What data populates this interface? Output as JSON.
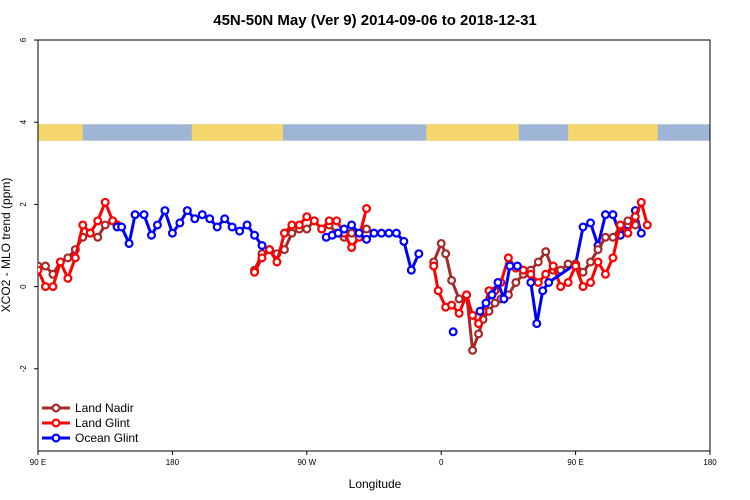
{
  "chart_data": {
    "type": "line",
    "title": "45N-50N May (Ver 9)   2014-09-06 to 2018-12-31",
    "xlabel": "Longitude",
    "ylabel": "XCO2 - MLO trend (ppm)",
    "xlim": [
      90,
      450
    ],
    "ylim": [
      -4,
      6
    ],
    "x_ticks": [
      {
        "value": 90,
        "label": "90 E"
      },
      {
        "value": 180,
        "label": "180"
      },
      {
        "value": 270,
        "label": "90 W"
      },
      {
        "value": 360,
        "label": "0"
      },
      {
        "value": 450,
        "label": "90 E"
      },
      {
        "value": 540,
        "label": "180"
      }
    ],
    "y_ticks": [
      -2,
      0,
      2,
      4,
      6
    ],
    "land_mask_band": {
      "y_range": [
        3.55,
        3.95
      ],
      "land_color": "#f5d76e",
      "ocean_color": "#9fb5d6"
    },
    "legend_position": "bottom-left",
    "series": [
      {
        "name": "Land Nadir",
        "color": "#a52a2a",
        "points": [
          [
            90,
            0.5
          ],
          [
            95,
            0.5
          ],
          [
            100,
            0.3
          ],
          [
            105,
            0.6
          ],
          [
            110,
            0.7
          ],
          [
            115,
            0.9
          ],
          [
            120,
            1.2
          ],
          [
            125,
            1.3
          ],
          [
            130,
            1.2
          ],
          [
            135,
            1.5
          ],
          [
            140,
            1.6
          ],
          [
            143,
            1.5
          ],
          null,
          [
            235,
            0.4
          ],
          [
            240,
            0.8
          ],
          [
            245,
            0.9
          ],
          [
            250,
            0.8
          ],
          [
            255,
            0.9
          ],
          [
            260,
            1.3
          ],
          [
            265,
            1.4
          ],
          [
            270,
            1.4
          ],
          [
            275,
            1.6
          ],
          [
            280,
            1.4
          ],
          [
            285,
            1.5
          ],
          [
            290,
            1.3
          ],
          [
            295,
            1.2
          ],
          [
            300,
            1.3
          ],
          [
            305,
            1.25
          ],
          [
            310,
            1.4
          ],
          null,
          [
            355,
            0.6
          ],
          [
            360,
            1.05
          ],
          [
            363,
            0.8
          ],
          [
            367,
            0.15
          ],
          [
            372,
            -0.3
          ],
          [
            377,
            -0.2
          ],
          [
            381,
            -1.55
          ],
          [
            385,
            -1.15
          ],
          [
            388,
            -0.8
          ],
          [
            392,
            -0.6
          ],
          [
            396,
            -0.4
          ],
          [
            400,
            -0.3
          ],
          [
            405,
            -0.2
          ],
          [
            410,
            0.1
          ],
          [
            415,
            0.3
          ],
          [
            420,
            0.4
          ],
          [
            425,
            0.6
          ],
          [
            430,
            0.85
          ],
          [
            435,
            0.4
          ],
          [
            440,
            0.4
          ],
          [
            445,
            0.55
          ],
          [
            450,
            0.55
          ]
        ]
      },
      {
        "name": "Land Glint",
        "color": "#ff0000",
        "points": [
          [
            90,
            0.4
          ],
          [
            95,
            0.0
          ],
          [
            100,
            0.0
          ],
          [
            105,
            0.6
          ],
          [
            110,
            0.2
          ],
          [
            115,
            0.7
          ],
          [
            120,
            1.5
          ],
          [
            125,
            1.3
          ],
          [
            130,
            1.6
          ],
          [
            135,
            2.05
          ],
          [
            140,
            1.6
          ],
          [
            143,
            1.5
          ],
          null,
          [
            235,
            0.35
          ],
          [
            240,
            0.7
          ],
          [
            245,
            0.9
          ],
          [
            250,
            0.6
          ],
          [
            255,
            1.3
          ],
          [
            260,
            1.5
          ],
          [
            265,
            1.5
          ],
          [
            270,
            1.7
          ],
          [
            275,
            1.6
          ],
          [
            280,
            1.4
          ],
          [
            285,
            1.6
          ],
          [
            290,
            1.6
          ],
          [
            295,
            1.3
          ],
          [
            300,
            0.95
          ],
          [
            305,
            1.2
          ],
          [
            310,
            1.9
          ],
          null,
          [
            355,
            0.5
          ],
          [
            358,
            -0.1
          ],
          [
            363,
            -0.5
          ],
          [
            367,
            -0.45
          ],
          [
            372,
            -0.65
          ],
          [
            377,
            -0.2
          ],
          [
            381,
            -0.7
          ],
          [
            385,
            -0.9
          ],
          [
            388,
            -0.6
          ],
          [
            392,
            -0.1
          ],
          [
            396,
            -0.1
          ],
          [
            400,
            0.1
          ],
          [
            405,
            0.7
          ],
          [
            410,
            0.45
          ],
          [
            415,
            0.4
          ],
          [
            420,
            0.3
          ],
          [
            425,
            0.1
          ],
          [
            430,
            0.3
          ],
          [
            435,
            0.5
          ],
          [
            440,
            0.0
          ],
          [
            445,
            0.1
          ],
          [
            450,
            0.5
          ]
        ]
      },
      {
        "name": "Ocean Glint",
        "color": "#0000ff",
        "points": [
          [
            143,
            1.45
          ],
          [
            146,
            1.45
          ],
          [
            151,
            1.05
          ],
          [
            155,
            1.75
          ],
          [
            161,
            1.75
          ],
          [
            166,
            1.25
          ],
          [
            170,
            1.5
          ],
          [
            175,
            1.85
          ],
          [
            180,
            1.3
          ],
          [
            185,
            1.55
          ],
          [
            190,
            1.85
          ],
          [
            195,
            1.65
          ],
          [
            200,
            1.75
          ],
          [
            205,
            1.65
          ],
          [
            210,
            1.45
          ],
          [
            215,
            1.65
          ],
          [
            220,
            1.45
          ],
          [
            225,
            1.35
          ],
          [
            230,
            1.5
          ],
          [
            235,
            1.25
          ],
          [
            240,
            1.0
          ],
          null,
          [
            283,
            1.2
          ],
          [
            287,
            1.25
          ],
          [
            291,
            1.3
          ],
          [
            295,
            1.4
          ],
          [
            300,
            1.5
          ],
          [
            305,
            1.3
          ],
          [
            310,
            1.15
          ],
          [
            315,
            1.3
          ],
          [
            320,
            1.3
          ],
          [
            325,
            1.3
          ],
          [
            330,
            1.3
          ],
          [
            335,
            1.1
          ],
          [
            340,
            0.4
          ],
          [
            345,
            0.8
          ],
          null,
          [
            368,
            -1.1
          ],
          null,
          [
            386,
            -0.6
          ],
          [
            390,
            -0.4
          ],
          [
            394,
            -0.2
          ],
          [
            398,
            0.1
          ],
          [
            402,
            -0.3
          ],
          [
            406,
            0.5
          ],
          [
            411,
            0.5
          ],
          null,
          [
            420,
            0.1
          ],
          [
            424,
            -0.9
          ],
          [
            428,
            -0.1
          ],
          [
            432,
            0.1
          ],
          [
            450,
            0.55
          ],
          [
            455,
            1.45
          ],
          [
            460,
            1.55
          ],
          [
            465,
            1.0
          ],
          [
            470,
            1.75
          ],
          [
            475,
            1.75
          ],
          [
            480,
            1.25
          ],
          [
            485,
            1.5
          ],
          [
            490,
            1.85
          ],
          [
            494,
            1.3
          ]
        ]
      }
    ],
    "extra_segments": [
      {
        "series": "Land Nadir",
        "points": [
          [
            450,
            0.55
          ],
          [
            455,
            0.35
          ],
          [
            460,
            0.6
          ],
          [
            465,
            0.9
          ],
          [
            470,
            1.2
          ],
          [
            475,
            1.2
          ],
          [
            480,
            1.45
          ],
          [
            485,
            1.6
          ],
          [
            490,
            1.5
          ]
        ]
      },
      {
        "series": "Land Glint",
        "points": [
          [
            450,
            0.5
          ],
          [
            455,
            0.0
          ],
          [
            460,
            0.1
          ],
          [
            465,
            0.6
          ],
          [
            470,
            0.3
          ],
          [
            475,
            0.7
          ],
          [
            480,
            1.5
          ],
          [
            485,
            1.3
          ],
          [
            490,
            1.7
          ],
          [
            494,
            2.05
          ],
          [
            498,
            1.5
          ]
        ]
      }
    ]
  }
}
